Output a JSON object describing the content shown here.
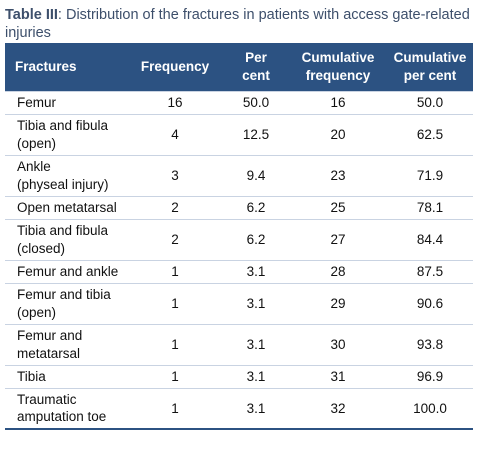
{
  "caption": {
    "label": "Table III",
    "text": ": Distribution of the fractures in patients with access gate-related injuries"
  },
  "table": {
    "headers": [
      [
        "Fractures"
      ],
      [
        "Frequency"
      ],
      [
        "Per",
        "cent"
      ],
      [
        "Cumulative",
        "frequency"
      ],
      [
        "Cumulative",
        "per cent"
      ]
    ],
    "rows": [
      {
        "fracture": [
          "Femur"
        ],
        "frequency": "16",
        "per_cent": "50.0",
        "cumulative_frequency": "16",
        "cumulative_per_cent": "50.0"
      },
      {
        "fracture": [
          "Tibia and fibula",
          "(open)"
        ],
        "frequency": "4",
        "per_cent": "12.5",
        "cumulative_frequency": "20",
        "cumulative_per_cent": "62.5"
      },
      {
        "fracture": [
          "Ankle",
          "(physeal injury)"
        ],
        "frequency": "3",
        "per_cent": "9.4",
        "cumulative_frequency": "23",
        "cumulative_per_cent": "71.9"
      },
      {
        "fracture": [
          "Open metatarsal"
        ],
        "frequency": "2",
        "per_cent": "6.2",
        "cumulative_frequency": "25",
        "cumulative_per_cent": "78.1"
      },
      {
        "fracture": [
          "Tibia and fibula",
          "(closed)"
        ],
        "frequency": "2",
        "per_cent": "6.2",
        "cumulative_frequency": "27",
        "cumulative_per_cent": "84.4"
      },
      {
        "fracture": [
          "Femur and ankle"
        ],
        "frequency": "1",
        "per_cent": "3.1",
        "cumulative_frequency": "28",
        "cumulative_per_cent": "87.5"
      },
      {
        "fracture": [
          "Femur and tibia",
          "(open)"
        ],
        "frequency": "1",
        "per_cent": "3.1",
        "cumulative_frequency": "29",
        "cumulative_per_cent": "90.6"
      },
      {
        "fracture": [
          "Femur and",
          "metatarsal"
        ],
        "frequency": "1",
        "per_cent": "3.1",
        "cumulative_frequency": "30",
        "cumulative_per_cent": "93.8"
      },
      {
        "fracture": [
          "Tibia"
        ],
        "frequency": "1",
        "per_cent": "3.1",
        "cumulative_frequency": "31",
        "cumulative_per_cent": "96.9"
      },
      {
        "fracture": [
          "Traumatic",
          "amputation toe"
        ],
        "frequency": "1",
        "per_cent": "3.1",
        "cumulative_frequency": "32",
        "cumulative_per_cent": "100.0"
      }
    ]
  },
  "colors": {
    "header_bg": "#2c5282",
    "header_text": "#ffffff",
    "caption_text": "#3d4f6b",
    "row_divider": "#c9d3e2"
  }
}
